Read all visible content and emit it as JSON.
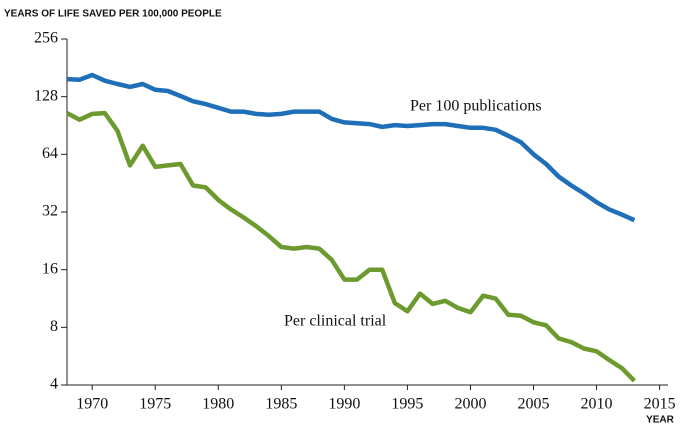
{
  "chart_data": {
    "type": "line",
    "y_axis_label": "YEARS OF LIFE SAVED PER 100,000 PEOPLE",
    "x_axis_label": "YEAR",
    "x": [
      1968,
      1969,
      1970,
      1971,
      1972,
      1973,
      1974,
      1975,
      1976,
      1977,
      1978,
      1979,
      1980,
      1981,
      1982,
      1983,
      1984,
      1985,
      1986,
      1987,
      1988,
      1989,
      1990,
      1991,
      1992,
      1993,
      1994,
      1995,
      1996,
      1997,
      1998,
      1999,
      2000,
      2001,
      2002,
      2003,
      2004,
      2005,
      2006,
      2007,
      2008,
      2009,
      2010,
      2011,
      2012,
      2013
    ],
    "series": [
      {
        "name": "Per 100 publications",
        "color": "#1f6fb8",
        "values": [
          158,
          157,
          166,
          155,
          149,
          144,
          149,
          139,
          137,
          129,
          121,
          117,
          112,
          107,
          107,
          104,
          103,
          104,
          107,
          107,
          107,
          98,
          94,
          93,
          92,
          89,
          91,
          90,
          91,
          92,
          92,
          90,
          88,
          88,
          86,
          80,
          74,
          64,
          57,
          49,
          44,
          40,
          36,
          33,
          31,
          29
        ]
      },
      {
        "name": "Per clinical trial",
        "color": "#6d9a2e",
        "values": [
          105,
          97,
          104,
          105,
          85,
          56,
          71,
          55,
          56,
          57,
          44,
          43,
          37,
          33,
          30,
          27,
          24,
          21,
          20.6,
          21,
          20.6,
          18,
          14.2,
          14.2,
          16,
          16,
          10.7,
          9.7,
          12,
          10.6,
          11,
          10.1,
          9.6,
          11.7,
          11.3,
          9.3,
          9.2,
          8.5,
          8.2,
          7,
          6.7,
          6.2,
          6,
          5.4,
          4.9,
          4.2
        ]
      }
    ],
    "xlim": [
      1968,
      2015
    ],
    "xticks": [
      1970,
      1975,
      1980,
      1985,
      1990,
      1995,
      2000,
      2005,
      2010,
      2015
    ],
    "ylim": [
      4,
      256
    ],
    "yticks": [
      4,
      8,
      16,
      32,
      64,
      128,
      256
    ],
    "y_scale": "log2",
    "grid": false
  }
}
